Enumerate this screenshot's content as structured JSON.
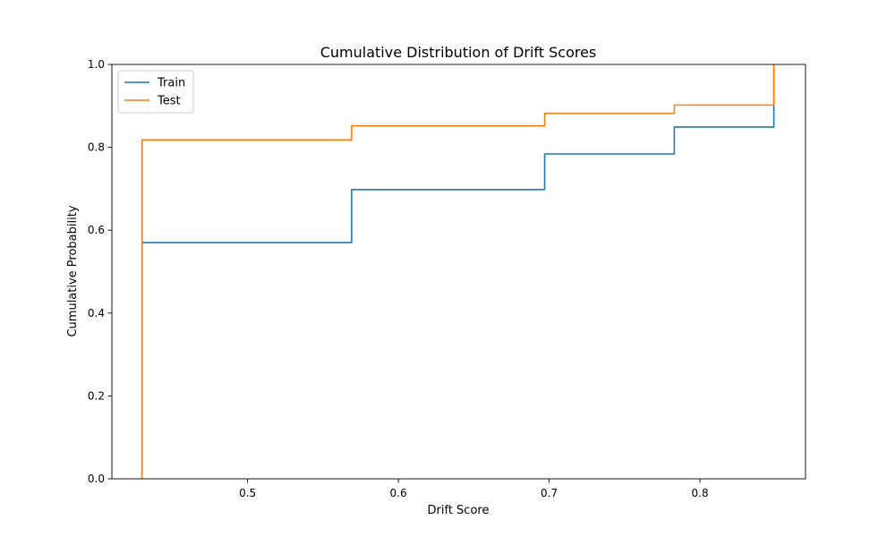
{
  "chart_data": {
    "type": "line",
    "step": "post",
    "title": "Cumulative Distribution of Drift Scores",
    "xlabel": "Drift Score",
    "ylabel": "Cumulative Probability",
    "xlim": [
      0.41,
      0.87
    ],
    "ylim": [
      0.0,
      1.0
    ],
    "x_ticks": [
      0.5,
      0.6,
      0.7,
      0.8
    ],
    "x_tick_labels": [
      "0.5",
      "0.6",
      "0.7",
      "0.8"
    ],
    "y_ticks": [
      0.0,
      0.2,
      0.4,
      0.6,
      0.8,
      1.0
    ],
    "y_tick_labels": [
      "0.0",
      "0.2",
      "0.4",
      "0.6",
      "0.8",
      "1.0"
    ],
    "grid": false,
    "legend_position": "top-left",
    "series": [
      {
        "name": "Train",
        "color": "#1f77b4",
        "x": [
          0.43,
          0.43,
          0.569,
          0.697,
          0.783,
          0.849,
          0.849
        ],
        "y": [
          0.0,
          0.57,
          0.698,
          0.784,
          0.849,
          0.849,
          1.0
        ]
      },
      {
        "name": "Test",
        "color": "#ff7f0e",
        "x": [
          0.43,
          0.43,
          0.569,
          0.697,
          0.783,
          0.849,
          0.849
        ],
        "y": [
          0.0,
          0.818,
          0.852,
          0.882,
          0.902,
          0.902,
          1.0
        ]
      }
    ]
  }
}
